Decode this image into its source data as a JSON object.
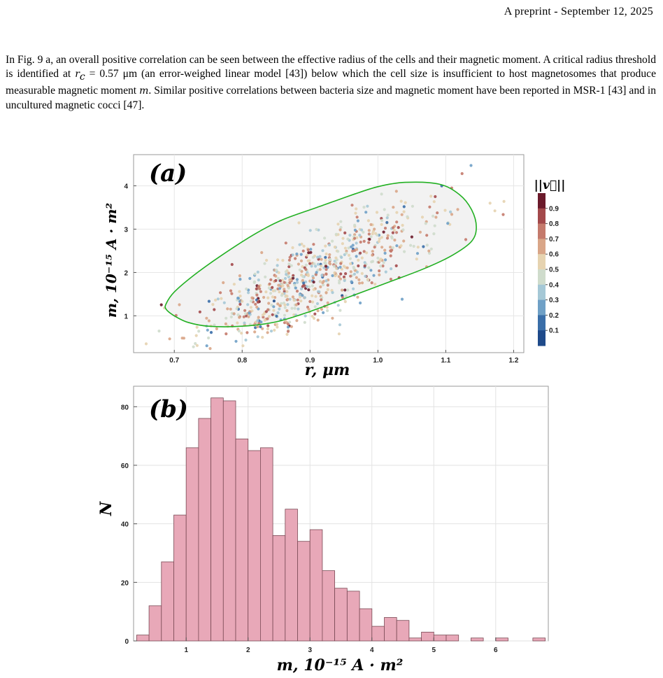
{
  "header": {
    "text": "A preprint - September 12, 2025"
  },
  "paragraph": {
    "part1": "In Fig. 9 a, an overall positive correlation can be seen between the effective radius of the cells and their magnetic moment. A critical radius threshold is identified at ",
    "rc": "r",
    "rc_sub": "c",
    "rc_value": " = 0.57 μm",
    "part2": " (an error-weighed linear model [43]) below which the cell size is insufficient to host magnetosomes that produce measurable magnetic moment ",
    "m": "m",
    "part3": ". Similar positive correlations between bacteria size and magnetic moment have been reported in MSR-1 [43] and in uncultured magnetic cocci [47]."
  },
  "chart_data": [
    {
      "type": "scatter",
      "panel_label": "(a)",
      "xlabel": "r,  μm",
      "ylabel": "m,  10⁻¹⁵ A · m²",
      "xlim": [
        0.64,
        1.215
      ],
      "ylim": [
        0.15,
        4.72
      ],
      "xticks": [
        0.7,
        0.8,
        0.9,
        1.0,
        1.1,
        1.2
      ],
      "xtick_labels": [
        "0.7",
        "0.8",
        "0.9",
        "1.0",
        "1.1",
        "1.2"
      ],
      "yticks": [
        1,
        2,
        3,
        4
      ],
      "ytick_labels": [
        "1",
        "2",
        "3",
        "4"
      ],
      "grid": true,
      "colorbar": {
        "label": "||v⃗||",
        "ticks": [
          0.9,
          0.8,
          0.7,
          0.6,
          0.5,
          0.4,
          0.3,
          0.2,
          0.1
        ],
        "tick_labels": [
          "0.9",
          "0.8",
          "0.7",
          "0.6",
          "0.5",
          "0.4",
          "0.3",
          "0.2",
          "0.1"
        ],
        "colors": [
          "#6b1a2b",
          "#a3494b",
          "#c47a6c",
          "#d9a688",
          "#e6d3b0",
          "#cfdccc",
          "#a5c8d6",
          "#6fa0c6",
          "#3a6ea8",
          "#1f4a8a"
        ]
      },
      "trend": "positive correlation, point cloud centered near r=0.9 μm, m=1.8",
      "contour": {
        "color": "#22b022",
        "points": [
          [
            0.688,
            1.28
          ],
          [
            0.7,
            1.55
          ],
          [
            0.73,
            1.95
          ],
          [
            0.77,
            2.4
          ],
          [
            0.82,
            2.9
          ],
          [
            0.86,
            3.22
          ],
          [
            0.91,
            3.5
          ],
          [
            0.96,
            3.78
          ],
          [
            1.0,
            3.98
          ],
          [
            1.04,
            4.08
          ],
          [
            1.09,
            4.04
          ],
          [
            1.12,
            3.8
          ],
          [
            1.138,
            3.45
          ],
          [
            1.145,
            3.05
          ],
          [
            1.138,
            2.72
          ],
          [
            1.11,
            2.4
          ],
          [
            1.07,
            2.1
          ],
          [
            1.02,
            1.8
          ],
          [
            0.96,
            1.45
          ],
          [
            0.9,
            1.1
          ],
          [
            0.85,
            0.86
          ],
          [
            0.8,
            0.76
          ],
          [
            0.75,
            0.76
          ],
          [
            0.72,
            0.85
          ],
          [
            0.7,
            1.0
          ],
          [
            0.688,
            1.15
          ]
        ]
      }
    },
    {
      "type": "bar",
      "panel_label": "(b)",
      "xlabel": "m,  10⁻¹⁵ A · m²",
      "ylabel": "N",
      "bin_width": 0.2,
      "bin_starts": [
        0.2,
        0.4,
        0.6,
        0.8,
        1.0,
        1.2,
        1.4,
        1.6,
        1.8,
        2.0,
        2.2,
        2.4,
        2.6,
        2.8,
        3.0,
        3.2,
        3.4,
        3.6,
        3.8,
        4.0,
        4.2,
        4.4,
        4.6,
        4.8,
        5.0,
        5.2,
        5.4,
        5.6,
        5.8,
        6.0,
        6.2,
        6.4,
        6.6
      ],
      "values": [
        2,
        12,
        27,
        43,
        66,
        76,
        83,
        82,
        69,
        65,
        66,
        36,
        45,
        34,
        38,
        24,
        18,
        17,
        11,
        5,
        8,
        7,
        1,
        3,
        2,
        2,
        0,
        1,
        0,
        1,
        0,
        0,
        1
      ],
      "xlim": [
        0.15,
        6.85
      ],
      "ylim": [
        0,
        87
      ],
      "xticks": [
        1,
        2,
        3,
        4,
        5,
        6
      ],
      "xtick_labels": [
        "1",
        "2",
        "3",
        "4",
        "5",
        "6"
      ],
      "yticks": [
        0,
        20,
        40,
        60,
        80
      ],
      "ytick_labels": [
        "0",
        "20",
        "40",
        "60",
        "80"
      ],
      "bar_color": "#e8a8b8",
      "grid": true
    }
  ]
}
